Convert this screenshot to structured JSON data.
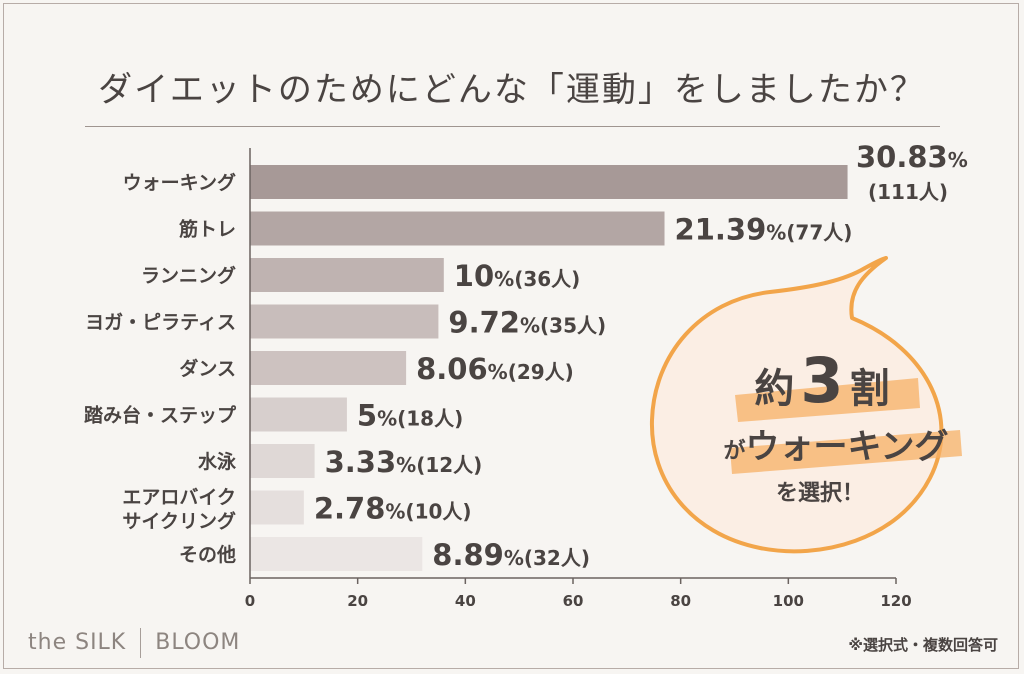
{
  "title": "ダイエットのためにどんな「運動」をしましたか？",
  "footnote": "※選択式・複数回答可",
  "brand": {
    "left": "the SILK",
    "right": "BLOOM"
  },
  "callout": {
    "line1_prefix": "約",
    "line1_number": "3",
    "line1_suffix": "割",
    "line2_prefix": "が",
    "line2_highlight": "ウォーキング",
    "line3": "を選択！",
    "colors": {
      "outline": "#f2a54a",
      "fill": "#fbeee4",
      "highlight": "#f7b066"
    }
  },
  "chart_data": {
    "type": "bar",
    "orientation": "horizontal",
    "categories": [
      "ウォーキング",
      "筋トレ",
      "ランニング",
      "ヨガ・ピラティス",
      "ダンス",
      "踏み台・ステップ",
      "水泳",
      "エアロバイク\nサイクリング",
      "その他"
    ],
    "values": [
      111,
      77,
      36,
      35,
      29,
      18,
      12,
      10,
      32
    ],
    "percent_labels": [
      "30.83%",
      "21.39%",
      "10%",
      "9.72%",
      "8.06%",
      "5%",
      "3.33%",
      "2.78%",
      "8.89%"
    ],
    "count_labels": [
      "(111人)",
      "(77人)",
      "(36人)",
      "(35人)",
      "(29人)",
      "(18人)",
      "(12人)",
      "(10人)",
      "(32人)"
    ],
    "xlim": [
      0,
      120
    ],
    "xticks": [
      0,
      20,
      40,
      60,
      80,
      100,
      120
    ],
    "bar_colors": [
      "#a79997",
      "#b3a6a4",
      "#bfb3b1",
      "#c8bdbb",
      "#cdc2c0",
      "#d7cfcd",
      "#dfd8d6",
      "#e5dfdd",
      "#ebe6e4"
    ],
    "grid": false,
    "legend": "none"
  }
}
